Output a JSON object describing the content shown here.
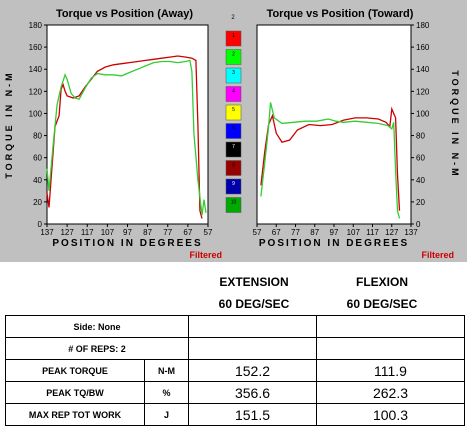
{
  "chart_data": [
    {
      "type": "line",
      "title": "Torque vs Position (Away)",
      "xlabel": "POSITION IN DEGREES",
      "ylabel": "TORQUE IN N-M",
      "filter_label": "Filtered",
      "x_ticks": [
        "137",
        "127",
        "117",
        "107",
        "97",
        "87",
        "77",
        "67",
        "57"
      ],
      "y_ticks": [
        0,
        20,
        40,
        60,
        80,
        100,
        120,
        140,
        160,
        180
      ],
      "ylim": [
        0,
        180
      ],
      "xlim": [
        137,
        57
      ],
      "series": [
        {
          "color": "#cc0000",
          "points": [
            [
              137,
              28
            ],
            [
              136,
              15
            ],
            [
              133,
              88
            ],
            [
              131,
              98
            ],
            [
              130,
              122
            ],
            [
              129,
              126
            ],
            [
              128,
              120
            ],
            [
              127,
              116
            ],
            [
              124,
              114
            ],
            [
              121,
              116
            ],
            [
              118,
              124
            ],
            [
              115,
              131
            ],
            [
              112,
              138
            ],
            [
              108,
              142
            ],
            [
              104,
              144
            ],
            [
              100,
              145
            ],
            [
              96,
              146
            ],
            [
              92,
              147
            ],
            [
              88,
              148
            ],
            [
              84,
              149
            ],
            [
              80,
              150
            ],
            [
              76,
              151
            ],
            [
              72,
              152
            ],
            [
              68,
              151
            ],
            [
              65,
              150
            ],
            [
              63,
              148
            ],
            [
              62,
              90
            ],
            [
              61,
              12
            ],
            [
              60,
              5
            ]
          ]
        },
        {
          "color": "#33cc33",
          "points": [
            [
              137,
              50
            ],
            [
              136,
              30
            ],
            [
              134,
              70
            ],
            [
              132,
              108
            ],
            [
              130,
              124
            ],
            [
              128,
              135
            ],
            [
              127,
              131
            ],
            [
              125,
              118
            ],
            [
              123,
              114
            ],
            [
              121,
              113
            ],
            [
              118,
              123
            ],
            [
              115,
              132
            ],
            [
              112,
              136
            ],
            [
              108,
              135
            ],
            [
              104,
              135
            ],
            [
              100,
              134
            ],
            [
              96,
              137
            ],
            [
              92,
              140
            ],
            [
              88,
              143
            ],
            [
              84,
              146
            ],
            [
              80,
              147
            ],
            [
              76,
              147
            ],
            [
              72,
              146
            ],
            [
              68,
              147
            ],
            [
              66,
              148
            ],
            [
              65,
              138
            ],
            [
              64,
              82
            ],
            [
              62,
              40
            ],
            [
              60,
              8
            ],
            [
              59,
              22
            ],
            [
              58,
              10
            ]
          ]
        }
      ]
    },
    {
      "type": "line",
      "title": "Torque vs Position (Toward)",
      "xlabel": "POSITION IN DEGREES",
      "ylabel": "TORQUE IN N-M",
      "filter_label": "Filtered",
      "x_ticks": [
        "57",
        "67",
        "77",
        "87",
        "97",
        "107",
        "117",
        "127",
        "137"
      ],
      "y_ticks": [
        0,
        20,
        40,
        60,
        80,
        100,
        120,
        140,
        160,
        180
      ],
      "ylim": [
        0,
        180
      ],
      "xlim": [
        57,
        137
      ],
      "series": [
        {
          "color": "#cc0000",
          "points": [
            [
              59,
              35
            ],
            [
              61,
              65
            ],
            [
              63,
              90
            ],
            [
              65,
              98
            ],
            [
              67,
              82
            ],
            [
              70,
              74
            ],
            [
              74,
              76
            ],
            [
              78,
              85
            ],
            [
              84,
              90
            ],
            [
              90,
              89
            ],
            [
              96,
              90
            ],
            [
              102,
              94
            ],
            [
              108,
              96
            ],
            [
              114,
              96
            ],
            [
              120,
              95
            ],
            [
              124,
              92
            ],
            [
              126,
              88
            ],
            [
              127,
              104
            ],
            [
              129,
              96
            ],
            [
              130,
              45
            ],
            [
              131,
              12
            ]
          ]
        },
        {
          "color": "#33cc33",
          "points": [
            [
              59,
              25
            ],
            [
              61,
              55
            ],
            [
              63,
              88
            ],
            [
              64,
              110
            ],
            [
              66,
              96
            ],
            [
              70,
              91
            ],
            [
              76,
              92
            ],
            [
              82,
              93
            ],
            [
              88,
              93
            ],
            [
              94,
              95
            ],
            [
              98,
              93
            ],
            [
              102,
              92
            ],
            [
              108,
              93
            ],
            [
              114,
              92
            ],
            [
              120,
              91
            ],
            [
              125,
              89
            ],
            [
              127,
              86
            ],
            [
              128,
              92
            ],
            [
              129,
              48
            ],
            [
              130,
              12
            ],
            [
              131,
              5
            ]
          ]
        }
      ]
    }
  ],
  "rep_legend": [
    "1",
    "2",
    "3",
    "4",
    "5",
    "6",
    "7",
    "8",
    "9",
    "10"
  ],
  "rep_legend_top": "2",
  "rep_legend_colors": [
    "#ff0000",
    "#00ff00",
    "#00ffff",
    "#ff00ff",
    "#ffff00",
    "#0000ff",
    "#000000",
    "#990000",
    "#0000aa",
    "#00aa00"
  ],
  "table": {
    "col1_header": [
      "EXTENSION",
      "60 DEG/SEC"
    ],
    "col2_header": [
      "FLEXION",
      "60 DEG/SEC"
    ],
    "rows": [
      {
        "label": "Side: None",
        "unit": "",
        "ext": "",
        "flex": ""
      },
      {
        "label": "# OF REPS: 2",
        "unit": "",
        "ext": "",
        "flex": ""
      },
      {
        "label": "PEAK TORQUE",
        "unit": "N-M",
        "ext": "152.2",
        "flex": "111.9"
      },
      {
        "label": "PEAK TQ/BW",
        "unit": "%",
        "ext": "356.6",
        "flex": "262.3"
      },
      {
        "label": "MAX REP TOT WORK",
        "unit": "J",
        "ext": "151.5",
        "flex": "100.3"
      }
    ]
  }
}
